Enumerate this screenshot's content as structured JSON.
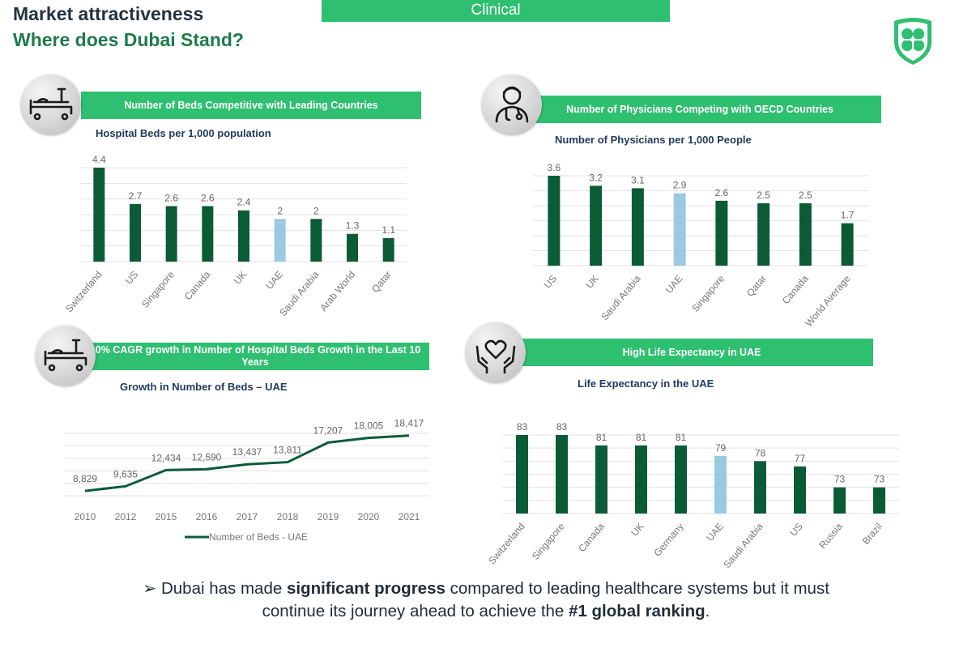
{
  "header": {
    "title_line1": "Market attractiveness",
    "title_line2": "Where does Dubai Stand?",
    "tab_label": "Clinical"
  },
  "logo": {
    "icon": "clover-shield-logo",
    "color": "#2fbf71"
  },
  "colors": {
    "accent": "#2fbf71",
    "bar_dark": "#0b5c36",
    "bar_highlight": "#9cc8e2",
    "line": "#0b5c36"
  },
  "panels": {
    "beds": {
      "icon": "hospital-bed-icon",
      "banner": "Number of Beds Competitive with Leading Countries",
      "subtitle": "Hospital Beds per 1,000 population"
    },
    "physicians": {
      "icon": "doctor-icon",
      "banner": "Number of Physicians Competing with OECD Countries",
      "subtitle": "Number of Physicians per 1,000 People"
    },
    "growth": {
      "icon": "hospital-bed-icon",
      "banner": "10% CAGR growth in Number of Hospital Beds Growth in the Last 10 Years",
      "subtitle": "Growth in Number of Beds – UAE"
    },
    "life": {
      "icon": "heart-hands-icon",
      "banner": "High Life Expectancy in UAE",
      "subtitle": "Life Expectancy in the UAE"
    }
  },
  "chart_data": [
    {
      "id": "beds",
      "type": "bar",
      "categories": [
        "Switzerland",
        "US",
        "Singapore",
        "Canada",
        "UK",
        "UAE",
        "Saudi Arabia",
        "Arab World",
        "Qatar"
      ],
      "values": [
        4.4,
        2.7,
        2.6,
        2.6,
        2.4,
        2,
        2,
        1.3,
        1.1
      ],
      "labels": [
        "4.4",
        "2.7",
        "2.6",
        "2.6",
        "2.4",
        "2",
        "2",
        "1.3",
        "1.1"
      ],
      "highlight": "UAE",
      "ylim": [
        0,
        4.4
      ],
      "grid": true
    },
    {
      "id": "physicians",
      "type": "bar",
      "categories": [
        "US",
        "UK",
        "Saudi Arabia",
        "UAE",
        "Singapore",
        "Qatar",
        "Canada",
        "World Average"
      ],
      "values": [
        3.6,
        3.2,
        3.1,
        2.9,
        2.6,
        2.5,
        2.5,
        1.7
      ],
      "labels": [
        "3.6",
        "3.2",
        "3.1",
        "2.9",
        "2.6",
        "2.5",
        "2.5",
        "1.7"
      ],
      "highlight": "UAE",
      "ylim": [
        0,
        3.6
      ],
      "grid": true
    },
    {
      "id": "growth",
      "type": "line",
      "x": [
        "2010",
        "2012",
        "2015",
        "2016",
        "2017",
        "2018",
        "2019",
        "2020",
        "2021"
      ],
      "series": [
        {
          "name": "Number of Beds  - UAE",
          "values": [
            8829,
            9635,
            12434,
            12590,
            13437,
            13811,
            17207,
            18005,
            18417
          ],
          "labels": [
            "8,829",
            "9,635",
            "12,434",
            "12,590",
            "13,437",
            "13,811",
            "17,207",
            "18,005",
            "18,417"
          ]
        }
      ],
      "legend": "bottom",
      "grid": true
    },
    {
      "id": "life",
      "type": "bar",
      "categories": [
        "Switzerland",
        "Singapore",
        "Canada",
        "UK",
        "Germany",
        "UAE",
        "Saudi Arabia",
        "US",
        "Russia",
        "Brazil"
      ],
      "values": [
        83,
        83,
        81,
        81,
        81,
        79,
        78,
        77,
        73,
        73
      ],
      "labels": [
        "83",
        "83",
        "81",
        "81",
        "81",
        "79",
        "78",
        "77",
        "73",
        "73"
      ],
      "highlight": "UAE",
      "ylim": [
        68,
        83
      ],
      "grid": true
    }
  ],
  "footer": {
    "bullet_icon": "➢",
    "line1_pre": "Dubai has made ",
    "line1_bold": "significant progress",
    "line1_post": " compared to leading healthcare systems but it must",
    "line2_pre": "continue its journey ahead to achieve the ",
    "line2_bold": "#1 global ranking",
    "line2_post": "."
  }
}
